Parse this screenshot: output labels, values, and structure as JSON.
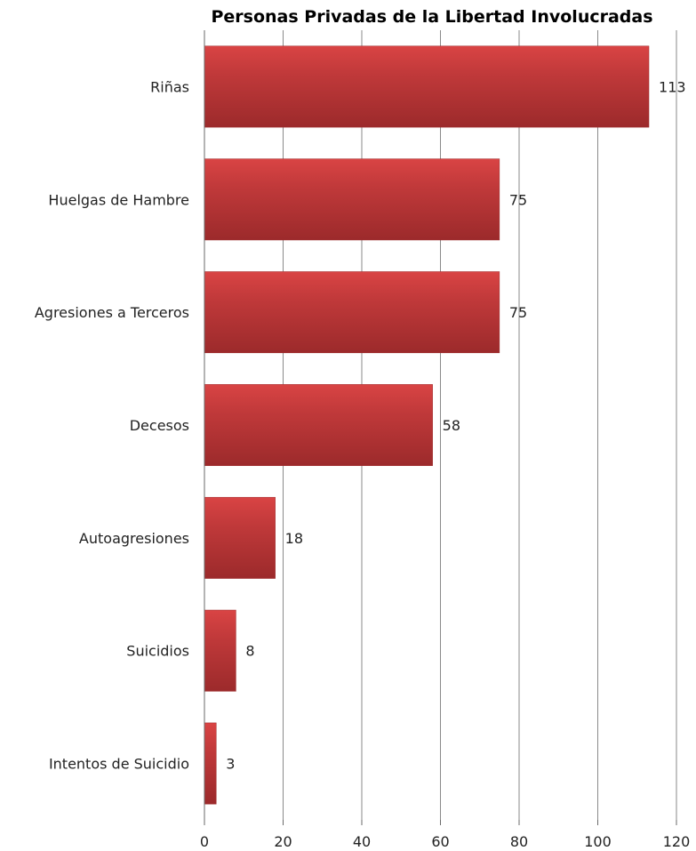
{
  "chart_data": {
    "type": "bar",
    "orientation": "horizontal",
    "title": "Personas Privadas de la Libertad Involucradas",
    "xlabel": "",
    "ylabel": "",
    "categories": [
      "Riñas",
      "Huelgas de Hambre",
      "Agresiones a Terceros",
      "Decesos",
      "Autoagresiones",
      "Suicidios",
      "Intentos de Suicidio"
    ],
    "values": [
      113,
      75,
      75,
      58,
      18,
      8,
      3
    ],
    "xlim": [
      0,
      120
    ],
    "xticks": [
      0,
      20,
      40,
      60,
      80,
      100,
      120
    ],
    "grid": true,
    "legend": "none",
    "bar_color": "#c0393a",
    "bar_color_light": "#d94444",
    "bar_color_dark": "#9c2a2b"
  }
}
